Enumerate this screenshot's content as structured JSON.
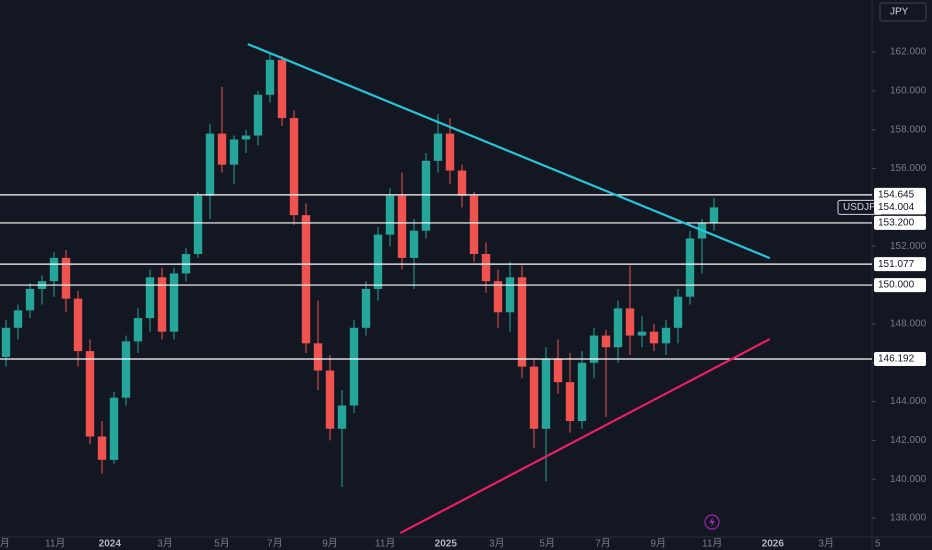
{
  "chart_data": {
    "type": "candlestick",
    "currency": "JPY",
    "up_color": "#26a69a",
    "down_color": "#ef5350",
    "xlim": [
      0,
      145
    ],
    "ylim": [
      137.13,
      164.68
    ],
    "x": [
      1,
      3,
      5,
      7,
      9,
      11,
      13,
      15,
      17,
      19,
      21,
      23,
      25,
      27,
      29,
      31,
      33,
      35,
      37,
      39,
      41,
      43,
      45,
      47,
      49,
      51,
      53,
      55,
      57,
      59,
      61,
      63,
      65,
      67,
      69,
      71,
      73,
      75,
      77,
      79,
      81,
      83,
      85,
      87,
      89,
      91,
      93,
      95,
      97,
      99,
      101,
      103,
      105,
      107,
      109,
      111,
      113,
      115,
      117,
      119
    ],
    "open": [
      146.3,
      147.8,
      148.7,
      149.8,
      150.2,
      151.4,
      149.3,
      146.6,
      142.2,
      141.0,
      144.2,
      147.1,
      148.3,
      150.4,
      147.6,
      150.6,
      151.6,
      154.6,
      157.8,
      156.2,
      157.5,
      157.7,
      159.8,
      161.6,
      158.6,
      153.6,
      147.0,
      145.6,
      142.6,
      143.8,
      147.8,
      149.8,
      152.6,
      154.6,
      151.4,
      152.8,
      156.4,
      157.8,
      155.9,
      154.6,
      151.6,
      150.2,
      148.6,
      150.4,
      145.8,
      142.6,
      146.2,
      145.0,
      143.0,
      146.0,
      147.4,
      146.8,
      148.8,
      147.4,
      147.6,
      147.0,
      147.8,
      149.4,
      152.4,
      153.2
    ],
    "high": [
      148.2,
      149.0,
      150.1,
      150.5,
      151.7,
      151.8,
      149.7,
      147.2,
      143.0,
      144.5,
      147.4,
      148.8,
      150.8,
      150.9,
      150.9,
      151.9,
      154.8,
      158.3,
      160.2,
      157.7,
      158.0,
      160.0,
      161.9,
      161.8,
      159.0,
      154.2,
      149.2,
      146.4,
      144.6,
      148.2,
      150.2,
      153.0,
      155.0,
      155.8,
      153.4,
      156.8,
      158.8,
      158.6,
      156.2,
      154.8,
      152.2,
      150.8,
      151.2,
      151.0,
      146.2,
      146.8,
      147.2,
      146.5,
      146.6,
      147.8,
      147.7,
      149.2,
      151.0,
      148.4,
      148.0,
      148.2,
      149.8,
      152.8,
      153.4,
      154.5
    ],
    "low": [
      145.8,
      147.2,
      148.3,
      149.0,
      149.4,
      148.6,
      145.8,
      141.8,
      140.3,
      140.8,
      143.8,
      146.5,
      147.6,
      147.2,
      147.2,
      150.2,
      151.4,
      153.4,
      155.8,
      155.2,
      156.8,
      157.2,
      159.4,
      158.2,
      153.1,
      146.5,
      144.6,
      142.0,
      139.6,
      143.4,
      147.4,
      149.2,
      152.0,
      150.8,
      149.8,
      152.4,
      155.8,
      155.2,
      154.0,
      151.2,
      149.6,
      147.8,
      147.6,
      145.2,
      141.6,
      139.9,
      144.4,
      142.4,
      142.6,
      145.2,
      143.2,
      146.0,
      146.4,
      146.8,
      146.6,
      146.4,
      147.0,
      149.0,
      150.6,
      152.8
    ],
    "close": [
      147.8,
      148.7,
      149.8,
      150.2,
      151.4,
      149.3,
      146.6,
      142.2,
      141.0,
      144.2,
      147.1,
      148.3,
      150.4,
      147.6,
      150.6,
      151.6,
      154.6,
      157.8,
      156.2,
      157.5,
      157.7,
      159.8,
      161.6,
      158.6,
      153.6,
      147.0,
      145.6,
      142.6,
      143.8,
      147.8,
      149.8,
      152.6,
      154.6,
      151.4,
      152.8,
      156.4,
      157.8,
      155.9,
      154.6,
      151.6,
      150.2,
      148.6,
      150.4,
      145.8,
      142.6,
      146.2,
      145.0,
      143.0,
      146.0,
      147.4,
      146.8,
      148.8,
      147.4,
      147.6,
      147.0,
      147.8,
      149.4,
      152.4,
      153.2,
      154.0
    ],
    "yticks": [
      {
        "value": 138,
        "label": "138.000"
      },
      {
        "value": 140,
        "label": "140.000"
      },
      {
        "value": 142,
        "label": "142.000"
      },
      {
        "value": 144,
        "label": "144.000"
      },
      {
        "value": 146,
        "label": "146.000"
      },
      {
        "value": 148,
        "label": "148.000"
      },
      {
        "value": 150,
        "label": "150.000"
      },
      {
        "value": 152,
        "label": "152.000"
      },
      {
        "value": 154,
        "label": "154.000"
      },
      {
        "value": 156,
        "label": "156.000"
      },
      {
        "value": 158,
        "label": "158.000"
      },
      {
        "value": 160,
        "label": "160.000"
      },
      {
        "value": 162,
        "label": "162.000"
      }
    ],
    "xticks": [
      {
        "value": 0.8,
        "label": "月"
      },
      {
        "value": 9.2,
        "label": "11月"
      },
      {
        "value": 18.3,
        "label": "2024"
      },
      {
        "value": 27.5,
        "label": "3月"
      },
      {
        "value": 37,
        "label": "5月"
      },
      {
        "value": 45.8,
        "label": "7月"
      },
      {
        "value": 55,
        "label": "9月"
      },
      {
        "value": 64.2,
        "label": "11月"
      },
      {
        "value": 74.3,
        "label": "2025"
      },
      {
        "value": 82.8,
        "label": "3月"
      },
      {
        "value": 91.2,
        "label": "5月"
      },
      {
        "value": 100.5,
        "label": "7月"
      },
      {
        "value": 109.7,
        "label": "9月"
      },
      {
        "value": 118.7,
        "label": "11月"
      },
      {
        "value": 128.8,
        "label": "2026"
      },
      {
        "value": 137.7,
        "label": "3月"
      },
      {
        "value": 146.3,
        "label": "5"
      }
    ],
    "levels": [
      {
        "value": 154.645,
        "label": "154.645"
      },
      {
        "value": 153.2,
        "label": "153.200"
      },
      {
        "value": 151.077,
        "label": "151.077"
      },
      {
        "value": 150,
        "label": "150.000"
      },
      {
        "value": 146.192,
        "label": "146.192"
      }
    ],
    "last_price": {
      "name": "USDJPY",
      "value": 154.004,
      "label": "154.004"
    },
    "trendlines": [
      {
        "color": "#26c6da",
        "x": [
          41.3,
          128.3
        ],
        "y": [
          162.41,
          151.39
        ]
      },
      {
        "color": "#e91e63",
        "x": [
          66.7,
          128.3
        ],
        "y": [
          137.23,
          147.22
        ]
      }
    ]
  }
}
